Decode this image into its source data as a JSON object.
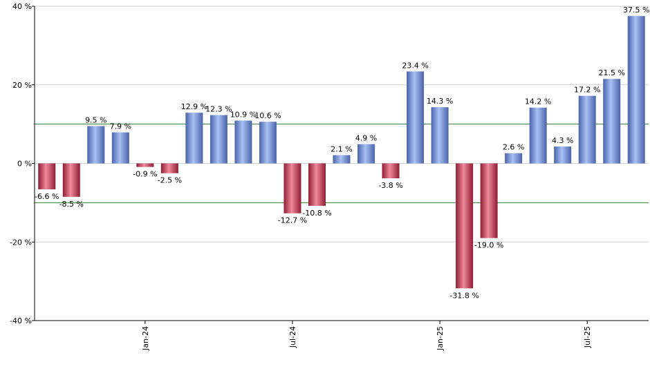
{
  "chart_data": {
    "type": "bar",
    "ylim": [
      -40,
      40
    ],
    "y_ticks": [
      {
        "value": 40,
        "label": "40 %"
      },
      {
        "value": 20,
        "label": "20 %"
      },
      {
        "value": 0,
        "label": "0 %"
      },
      {
        "value": -20,
        "label": "-20 %"
      },
      {
        "value": -40,
        "label": "-40 %"
      }
    ],
    "x_ticks": [
      {
        "index": 4.5,
        "label": "Jan-24"
      },
      {
        "index": 10.5,
        "label": "Jul-24"
      },
      {
        "index": 16.5,
        "label": "Jan-25"
      },
      {
        "index": 22.5,
        "label": "Jul-25"
      }
    ],
    "reference_lines": [
      10,
      -10
    ],
    "grid": true,
    "values": [
      -6.6,
      -8.5,
      9.5,
      7.9,
      -0.9,
      -2.5,
      12.9,
      12.3,
      10.9,
      10.6,
      -12.7,
      -10.8,
      2.1,
      4.9,
      -3.8,
      23.4,
      14.3,
      -31.8,
      -19.0,
      2.6,
      14.2,
      4.3,
      17.2,
      21.5,
      37.5
    ],
    "labels": [
      "-6.6 %",
      "-8.5 %",
      "9.5 %",
      "7.9 %",
      "-0.9 %",
      "-2.5 %",
      "12.9 %",
      "12.3 %",
      "10.9 %",
      "10.6 %",
      "-12.7 %",
      "-10.8 %",
      "2.1 %",
      "4.9 %",
      "-3.8 %",
      "23.4 %",
      "14.3 %",
      "-31.8 %",
      "-19.0 %",
      "2.6 %",
      "14.2 %",
      "4.3 %",
      "17.2 %",
      "21.5 %",
      "37.5 %"
    ],
    "colors": {
      "positive": "#6f8fd8",
      "negative": "#c8324f",
      "reference_line": "#2e7d32",
      "grid": "#d0d0d0",
      "axis": "#000000"
    }
  }
}
